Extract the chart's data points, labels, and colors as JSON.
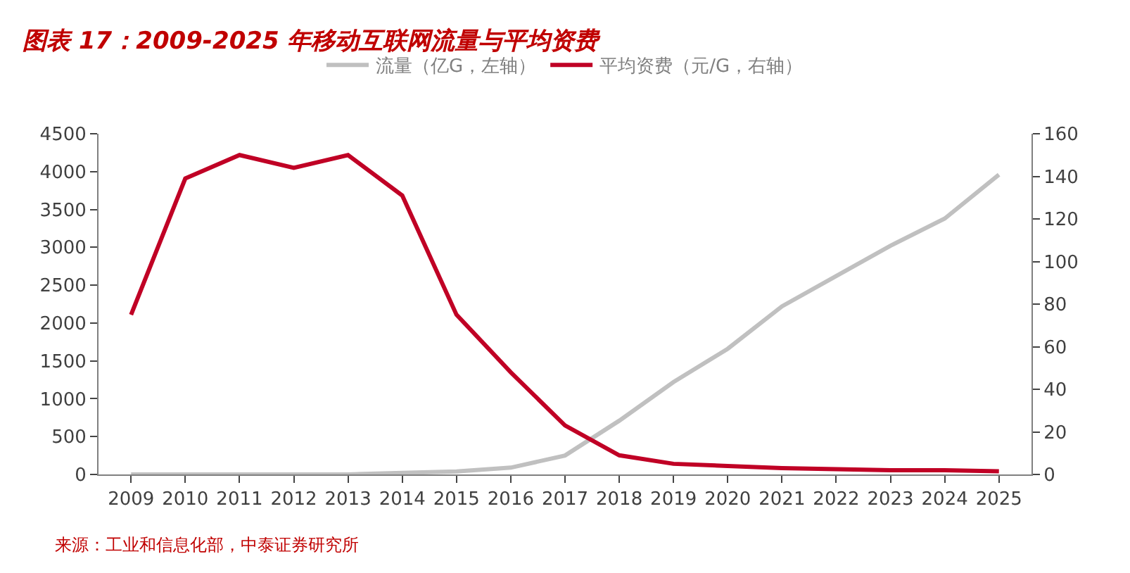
{
  "chart_data": {
    "type": "line",
    "title": "图表 17：2009-2025 年移动互联网流量与平均资费",
    "categories": [
      "2009",
      "2010",
      "2011",
      "2012",
      "2013",
      "2014",
      "2015",
      "2016",
      "2017",
      "2018",
      "2019",
      "2020",
      "2021",
      "2022",
      "2023",
      "2024",
      "2025"
    ],
    "series": [
      {
        "name": "流量（亿G，左轴）",
        "color": "#c0c0c0",
        "values": [
          0,
          0,
          0,
          0,
          0,
          20,
          40,
          90,
          250,
          710,
          1220,
          1660,
          2220,
          2620,
          3020,
          3380,
          3960
        ]
      },
      {
        "name": "平均资费（元/G，右轴）",
        "color": "#c00025",
        "axis": "y2",
        "values": [
          75,
          139,
          150,
          144,
          150,
          131,
          75,
          48,
          23,
          9,
          5,
          4,
          3,
          2.5,
          2,
          2,
          1.5
        ]
      }
    ],
    "ylim": [
      0,
      4500
    ],
    "yticks": [
      0,
      500,
      1000,
      1500,
      2000,
      2500,
      3000,
      3500,
      4000,
      4500
    ],
    "y2lim": [
      0,
      160
    ],
    "y2ticks": [
      0,
      20,
      40,
      60,
      80,
      100,
      120,
      140,
      160
    ],
    "annotations": [
      "来源：工业和信息化部，中泰证券研究所"
    ],
    "legend": "top",
    "marker": "none",
    "line_style": "solid"
  }
}
